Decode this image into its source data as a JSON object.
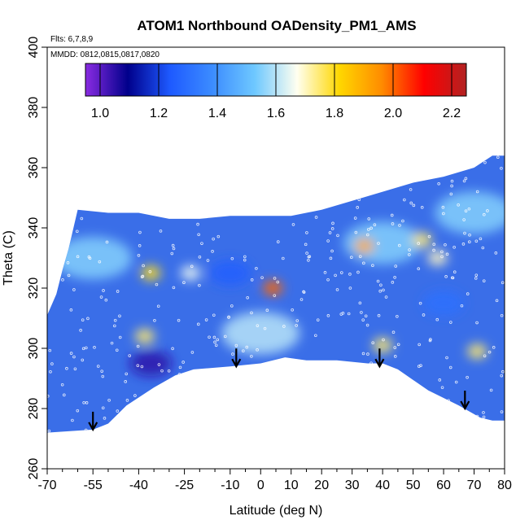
{
  "chart_data": {
    "type": "heatmap",
    "title": "ATOM1 Northbound OADensity_PM1_AMS",
    "annotations": {
      "flights": "Flts: 6,7,8,9",
      "dates": "MMDD: 0812,0815,0817,0820"
    },
    "xlabel": "Latitude (deg N)",
    "ylabel": "Theta (C)",
    "xlim": [
      -70,
      80
    ],
    "ylim": [
      260,
      400
    ],
    "x_ticks": [
      -70,
      -55,
      -40,
      -25,
      -10,
      0,
      10,
      20,
      30,
      40,
      50,
      60,
      70,
      80
    ],
    "x_tick_labels": [
      "-70",
      "-55",
      "-40",
      "-25",
      "-10",
      "0",
      "10",
      "20",
      "30",
      "40",
      "50",
      "60",
      "70",
      "80"
    ],
    "y_ticks": [
      260,
      280,
      300,
      320,
      340,
      360,
      380,
      400
    ],
    "y_tick_labels": [
      "260",
      "280",
      "300",
      "320",
      "340",
      "360",
      "380",
      "400"
    ],
    "colorbar": {
      "range": [
        0.95,
        2.25
      ],
      "ticks": [
        1.0,
        1.2,
        1.4,
        1.6,
        1.8,
        2.0,
        2.2
      ],
      "tick_labels": [
        "1.0",
        "1.2",
        "1.4",
        "1.6",
        "1.8",
        "2.0",
        "2.2"
      ],
      "colors": [
        "#8a2be2",
        "#00008b",
        "#1e5aff",
        "#3c8cff",
        "#6ec8ff",
        "#fffff0",
        "#ffd700",
        "#ff8c00",
        "#ff0000",
        "#b22222"
      ]
    },
    "field_lower_boundary": [
      [
        -70,
        272
      ],
      [
        -55,
        273
      ],
      [
        -50,
        275
      ],
      [
        -44,
        281
      ],
      [
        -35,
        287
      ],
      [
        -28,
        291
      ],
      [
        -22,
        293
      ],
      [
        -10,
        294
      ],
      [
        0,
        295
      ],
      [
        8,
        297
      ],
      [
        15,
        296
      ],
      [
        25,
        296
      ],
      [
        35,
        295
      ],
      [
        40,
        295
      ],
      [
        45,
        293
      ],
      [
        55,
        286
      ],
      [
        65,
        281
      ],
      [
        72,
        277
      ],
      [
        76,
        276
      ],
      [
        80,
        276
      ]
    ],
    "field_upper_boundary": [
      [
        -70,
        311
      ],
      [
        -67,
        318
      ],
      [
        -65,
        326
      ],
      [
        -63,
        333
      ],
      [
        -60,
        346
      ],
      [
        -50,
        345
      ],
      [
        -40,
        345
      ],
      [
        -30,
        343
      ],
      [
        -20,
        343
      ],
      [
        -10,
        344
      ],
      [
        0,
        344
      ],
      [
        10,
        344
      ],
      [
        20,
        346
      ],
      [
        30,
        349
      ],
      [
        40,
        352
      ],
      [
        50,
        355
      ],
      [
        60,
        357
      ],
      [
        70,
        360
      ],
      [
        76,
        364
      ],
      [
        80,
        364
      ]
    ],
    "hotspots": [
      {
        "lat": 34,
        "theta": 334,
        "value": 1.9
      },
      {
        "lat": 4,
        "theta": 320,
        "value": 2.0
      },
      {
        "lat": -36,
        "theta": 325,
        "value": 1.8
      },
      {
        "lat": 53,
        "theta": 336,
        "value": 1.75
      },
      {
        "lat": -38,
        "theta": 304,
        "value": 1.75
      },
      {
        "lat": 40,
        "theta": 301,
        "value": 1.75
      },
      {
        "lat": -23,
        "theta": 325,
        "value": 1.65
      },
      {
        "lat": 71,
        "theta": 299,
        "value": 1.75
      },
      {
        "lat": 58,
        "theta": 330,
        "value": 1.7
      }
    ],
    "light_regions": [
      {
        "lat": 0,
        "theta": 305,
        "value": 1.6
      },
      {
        "lat": 40,
        "theta": 335,
        "value": 1.55
      },
      {
        "lat": 70,
        "theta": 345,
        "value": 1.55
      },
      {
        "lat": -55,
        "theta": 330,
        "value": 1.55
      }
    ],
    "low_regions": [
      {
        "lat": -36,
        "theta": 295,
        "value": 1.05
      },
      {
        "lat": -10,
        "theta": 325,
        "value": 1.25
      },
      {
        "lat": 60,
        "theta": 315,
        "value": 1.3
      }
    ],
    "arrows": [
      {
        "lat": -55,
        "theta": 273
      },
      {
        "lat": -8,
        "theta": 294
      },
      {
        "lat": 39,
        "theta": 294
      },
      {
        "lat": 67,
        "theta": 280
      }
    ]
  }
}
